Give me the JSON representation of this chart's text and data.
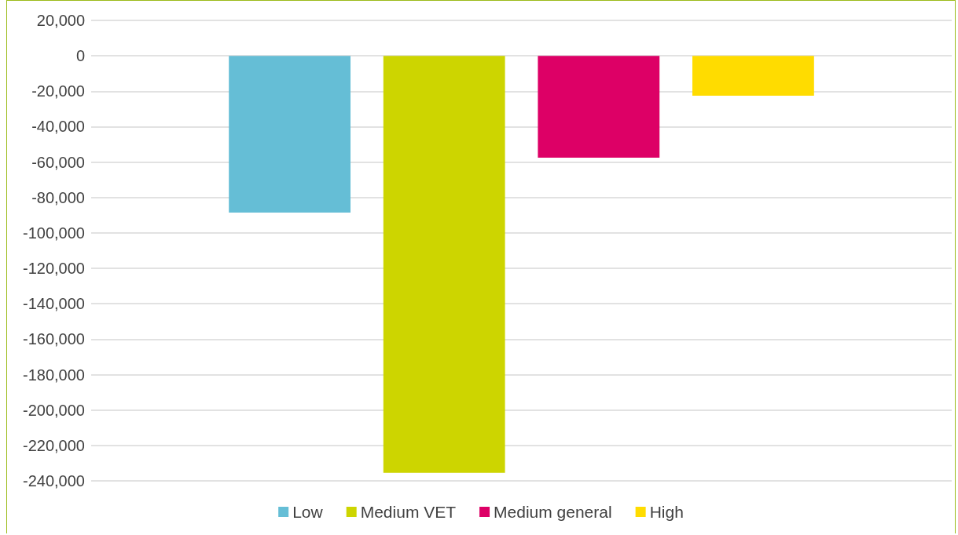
{
  "chart_data": {
    "type": "bar",
    "categories": [
      null
    ],
    "series": [
      {
        "name": "Low",
        "color": "#65bed6",
        "values": [
          -88500
        ]
      },
      {
        "name": "Medium VET",
        "color": "#cdd500",
        "values": [
          -235500
        ]
      },
      {
        "name": "Medium general",
        "color": "#dd0066",
        "values": [
          -57500
        ]
      },
      {
        "name": "High",
        "color": "#ffdc00",
        "values": [
          -22500
        ]
      }
    ],
    "ylim": [
      -240000,
      20000
    ],
    "yticks": [
      {
        "value": -240000,
        "label": "-240,000"
      },
      {
        "value": -220000,
        "label": "-220,000"
      },
      {
        "value": -200000,
        "label": "-200,000"
      },
      {
        "value": -180000,
        "label": "-180,000"
      },
      {
        "value": -160000,
        "label": "-160,000"
      },
      {
        "value": -140000,
        "label": "-140,000"
      },
      {
        "value": -120000,
        "label": "-120,000"
      },
      {
        "value": -100000,
        "label": "-100,000"
      },
      {
        "value": -80000,
        "label": "-80,000"
      },
      {
        "value": -60000,
        "label": "-60,000"
      },
      {
        "value": -40000,
        "label": "-40,000"
      },
      {
        "value": -20000,
        "label": "-20,000"
      },
      0,
      {
        "value": 20000,
        "label": "20,000"
      }
    ],
    "grid": "y",
    "legend": "bottom"
  }
}
